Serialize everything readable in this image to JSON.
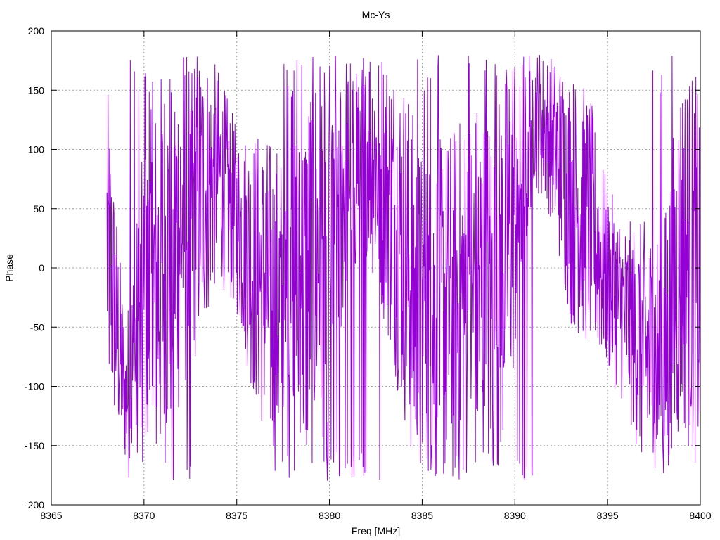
{
  "chart_data": {
    "type": "line",
    "title": "Mc-Ys",
    "xlabel": "Freq [MHz]",
    "ylabel": "Phase",
    "xlim": [
      8365,
      8400
    ],
    "ylim": [
      -200,
      200
    ],
    "xticks": [
      "8365",
      "8370",
      "8375",
      "8380",
      "8385",
      "8390",
      "8395",
      "8400"
    ],
    "yticks": [
      "200",
      "150",
      "100",
      "50",
      "0",
      "-50",
      "-100",
      "-150",
      "-200"
    ],
    "grid": true,
    "legend": "none",
    "series": [
      {
        "color": "#9400d3",
        "x_start": 8368.0,
        "x_end": 8400.0,
        "point_count": 1600,
        "envelope_x": [
          8368,
          8369,
          8370,
          8371,
          8372,
          8373,
          8374,
          8375,
          8376,
          8377,
          8378,
          8379,
          8380,
          8381,
          8382,
          8383,
          8384,
          8385,
          8386,
          8387,
          8388,
          8389,
          8390,
          8391,
          8392,
          8393,
          8394,
          8395,
          8396,
          8397,
          8398,
          8399,
          8400
        ],
        "envelope_center": [
          20,
          -110,
          -60,
          0,
          40,
          60,
          80,
          40,
          0,
          -30,
          -60,
          0,
          40,
          90,
          110,
          70,
          20,
          -60,
          -40,
          -30,
          -20,
          -30,
          60,
          130,
          110,
          60,
          40,
          -10,
          -40,
          -70,
          -90,
          20,
          -10
        ],
        "envelope_amplitude": [
          140,
          60,
          170,
          175,
          160,
          130,
          90,
          80,
          120,
          140,
          160,
          175,
          170,
          120,
          100,
          120,
          150,
          160,
          150,
          160,
          170,
          170,
          150,
          60,
          70,
          110,
          110,
          80,
          80,
          110,
          130,
          160,
          170
        ]
      }
    ]
  }
}
